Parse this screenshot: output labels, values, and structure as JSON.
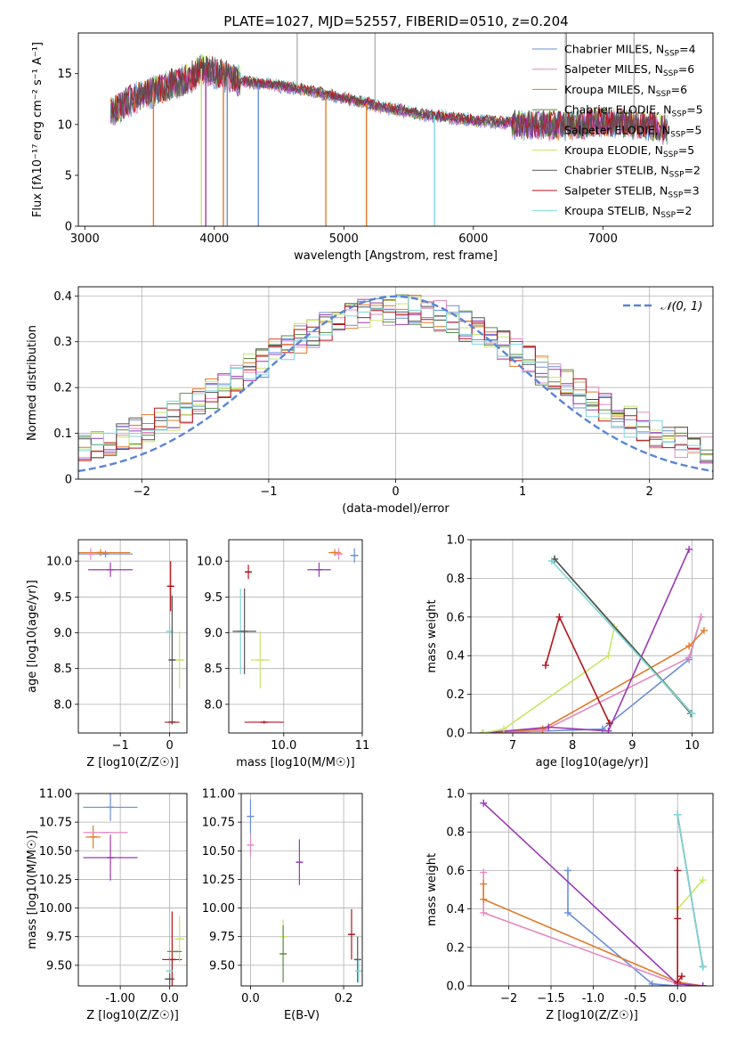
{
  "figure_title": "PLATE=1027, MJD=52557, FIBERID=0510, z=0.204",
  "models": [
    {
      "name": "Chabrier MILES",
      "nssp": "4",
      "color": "#6a8fd9"
    },
    {
      "name": "Salpeter MILES",
      "nssp": "6",
      "color": "#e58ac0"
    },
    {
      "name": "Kroupa MILES",
      "nssp": "6",
      "color": "#e07b2a"
    },
    {
      "name": "Chabrier ELODIE",
      "nssp": "5",
      "color": "#5a8c47"
    },
    {
      "name": "Salpeter ELODIE",
      "nssp": "5",
      "color": "#9a39b6"
    },
    {
      "name": "Kroupa ELODIE",
      "nssp": "5",
      "color": "#c8e66a"
    },
    {
      "name": "Chabrier STELIB",
      "nssp": "2",
      "color": "#555555"
    },
    {
      "name": "Salpeter STELIB",
      "nssp": "3",
      "color": "#b5141c"
    },
    {
      "name": "Kroupa STELIB",
      "nssp": "2",
      "color": "#7fd6dc"
    }
  ],
  "chart_data": [
    {
      "id": "spectrum",
      "type": "line",
      "xlabel": "wavelength [Angstrom, rest frame]",
      "ylabel": "Flux [fλ10⁻¹⁷ erg cm⁻² s⁻¹ A⁻¹]",
      "xlim": [
        2950,
        7850
      ],
      "ylim": [
        0,
        19
      ],
      "xticks": [
        3000,
        4000,
        5000,
        6000,
        7000
      ],
      "yticks": [
        0,
        5,
        10,
        15
      ],
      "continuum": {
        "x": [
          3200,
          3400,
          3600,
          3800,
          3900,
          4000,
          4200,
          4400,
          4700,
          5000,
          5300,
          5600,
          6000,
          6200,
          6500,
          6800,
          7000,
          7300,
          7500
        ],
        "y": [
          11.2,
          12.7,
          13.6,
          14.5,
          15.5,
          15.2,
          14.2,
          14.0,
          13.4,
          12.6,
          11.7,
          11.0,
          10.4,
          10.2,
          9.9,
          9.9,
          10.3,
          10.0,
          9.5
        ]
      },
      "dips": [
        3530,
        3900,
        3934,
        4070,
        4100,
        4340,
        4861,
        5175,
        5700
      ],
      "spikes": [
        4640,
        5240,
        6710,
        6720,
        7240
      ]
    },
    {
      "id": "residuals",
      "type": "histogram",
      "xlabel": "(data-model)/error",
      "ylabel": "Normed distribution",
      "xlim": [
        -2.5,
        2.5
      ],
      "ylim": [
        0,
        0.42
      ],
      "xticks": [
        -2,
        -1,
        0,
        1,
        2
      ],
      "yticks": [
        0,
        0.1,
        0.2,
        0.3,
        0.4
      ],
      "bin_width": 0.1,
      "reference_label": "N(0,1)"
    },
    {
      "id": "age_vs_Z",
      "type": "scatter",
      "xlabel": "Z [log10(Z/Z☉)]",
      "ylabel": "age  [log10(age/yr)]",
      "xlim": [
        -1.85,
        0.35
      ],
      "ylim": [
        7.6,
        10.3
      ],
      "xticks": [
        -1,
        0
      ],
      "yticks": [
        8.0,
        8.5,
        9.0,
        9.5,
        10.0
      ],
      "points": [
        {
          "model": 0,
          "x": -1.3,
          "y": 10.1,
          "xerr": 0.55,
          "yerr": 0.05
        },
        {
          "model": 2,
          "x": -1.4,
          "y": 10.12,
          "xerr": 0.6,
          "yerr": 0.05
        },
        {
          "model": 1,
          "x": -1.6,
          "y": 10.1,
          "xerr": 0.05,
          "yerr": 0.08
        },
        {
          "model": 4,
          "x": -1.2,
          "y": 9.88,
          "xerr": 0.45,
          "yerr": 0.1
        },
        {
          "model": 7,
          "x": 0.02,
          "y": 9.65,
          "xerr": 0.02,
          "yerr": 0.35
        },
        {
          "model": 7,
          "x": 0.05,
          "y": 7.75,
          "xerr": 0.15,
          "yerr": 0.03
        },
        {
          "model": 5,
          "x": 0.2,
          "y": 8.62,
          "xerr": 0.1,
          "yerr": 0.4
        },
        {
          "model": 8,
          "x": 0.0,
          "y": 9.02,
          "xerr": 0.05,
          "yerr": 0.1
        },
        {
          "model": 6,
          "x": 0.05,
          "y": 8.62,
          "xerr": 0.03,
          "yerr": 0.9
        }
      ]
    },
    {
      "id": "age_vs_mass",
      "type": "scatter",
      "xlabel": "mass [log10(M/M☉)]",
      "ylabel": "",
      "xlim": [
        9.3,
        11.0
      ],
      "ylim": [
        7.6,
        10.3
      ],
      "xticks": [
        10,
        11
      ],
      "yticks": [
        8.0,
        8.5,
        9.0,
        9.5,
        10.0
      ],
      "points": [
        {
          "model": 0,
          "x": 10.9,
          "y": 10.08,
          "xerr": 0.05,
          "yerr": 0.1
        },
        {
          "model": 2,
          "x": 10.65,
          "y": 10.12,
          "xerr": 0.08,
          "yerr": 0.05
        },
        {
          "model": 1,
          "x": 10.7,
          "y": 10.1,
          "xerr": 0.05,
          "yerr": 0.08
        },
        {
          "model": 4,
          "x": 10.45,
          "y": 9.88,
          "xerr": 0.15,
          "yerr": 0.1
        },
        {
          "model": 7,
          "x": 9.55,
          "y": 9.85,
          "xerr": 0.02,
          "yerr": 0.1
        },
        {
          "model": 7,
          "x": 9.75,
          "y": 7.75,
          "xerr": 0.25,
          "yerr": 0.02
        },
        {
          "model": 5,
          "x": 9.7,
          "y": 8.62,
          "xerr": 0.12,
          "yerr": 0.4
        },
        {
          "model": 8,
          "x": 9.45,
          "y": 9.02,
          "xerr": 0.05,
          "yerr": 0.6
        },
        {
          "model": 6,
          "x": 9.5,
          "y": 9.02,
          "xerr": 0.15,
          "yerr": 0.6
        }
      ]
    },
    {
      "id": "weight_vs_age",
      "type": "line",
      "xlabel": "age  [log10(age/yr)]",
      "ylabel": "mass weight",
      "xlim": [
        6.3,
        10.35
      ],
      "ylim": [
        0,
        1
      ],
      "xticks": [
        7,
        8,
        9,
        10
      ],
      "yticks": [
        0.0,
        0.2,
        0.4,
        0.6,
        0.8,
        1.0
      ],
      "series": [
        {
          "model": 0,
          "x": [
            6.5,
            8.5,
            9.95,
            10.15
          ],
          "y": [
            0.0,
            0.02,
            0.38,
            0.6
          ]
        },
        {
          "model": 1,
          "x": [
            6.5,
            7.5,
            9.95,
            10.15
          ],
          "y": [
            0.0,
            0.01,
            0.39,
            0.6
          ]
        },
        {
          "model": 2,
          "x": [
            6.5,
            7.5,
            9.95,
            10.2
          ],
          "y": [
            0.0,
            0.02,
            0.45,
            0.53
          ]
        },
        {
          "model": 3,
          "x": [
            7.7,
            10.0
          ],
          "y": [
            0.9,
            0.1
          ]
        },
        {
          "model": 4,
          "x": [
            6.5,
            7.6,
            8.6,
            9.95
          ],
          "y": [
            0.0,
            0.03,
            0.01,
            0.95
          ]
        },
        {
          "model": 5,
          "x": [
            6.5,
            6.85,
            8.6,
            8.7
          ],
          "y": [
            0.0,
            0.02,
            0.4,
            0.55
          ]
        },
        {
          "model": 6,
          "x": [
            7.7,
            9.98
          ],
          "y": [
            0.9,
            0.1
          ]
        },
        {
          "model": 7,
          "x": [
            7.55,
            7.78,
            8.62
          ],
          "y": [
            0.35,
            0.6,
            0.05
          ]
        },
        {
          "model": 8,
          "x": [
            7.65,
            10.0
          ],
          "y": [
            0.89,
            0.1
          ]
        }
      ]
    },
    {
      "id": "mass_vs_Z",
      "type": "scatter",
      "xlabel": "Z [log10(Z/Z☉)]",
      "ylabel": "mass [log10(M/M☉)]",
      "xlim": [
        -1.85,
        0.35
      ],
      "ylim": [
        9.32,
        11.0
      ],
      "xticks": [
        -1,
        0
      ],
      "yticks": [
        9.5,
        9.75,
        10.0,
        10.25,
        10.5,
        10.75,
        11.0
      ],
      "points": [
        {
          "model": 0,
          "x": -1.2,
          "y": 10.88,
          "xerr": 0.55,
          "yerr": 0.12
        },
        {
          "model": 2,
          "x": -1.55,
          "y": 10.62,
          "xerr": 0.15,
          "yerr": 0.1
        },
        {
          "model": 1,
          "x": -1.3,
          "y": 10.66,
          "xerr": 0.45,
          "yerr": 0.0
        },
        {
          "model": 4,
          "x": -1.2,
          "y": 10.44,
          "xerr": 0.55,
          "yerr": 0.2
        },
        {
          "model": 7,
          "x": 0.05,
          "y": 9.55,
          "xerr": 0.2,
          "yerr": 0.42
        },
        {
          "model": 5,
          "x": 0.2,
          "y": 9.73,
          "xerr": 0.1,
          "yerr": 0.2
        },
        {
          "model": 3,
          "x": 0.1,
          "y": 9.62,
          "xerr": 0.15,
          "yerr": 0.0
        },
        {
          "model": 8,
          "x": 0.0,
          "y": 9.45,
          "xerr": 0.05,
          "yerr": 0.1
        },
        {
          "model": 6,
          "x": 0.0,
          "y": 9.38,
          "xerr": 0.1,
          "yerr": 0.05
        }
      ]
    },
    {
      "id": "mass_vs_EBV",
      "type": "scatter",
      "xlabel": "E(B-V)",
      "ylabel": "",
      "xlim": [
        -0.02,
        0.24
      ],
      "ylim": [
        9.32,
        11.0
      ],
      "xticks": [
        0.0,
        0.2
      ],
      "yticks": [
        9.5,
        9.75,
        10.0,
        10.25,
        10.5,
        10.75,
        11.0
      ],
      "points": [
        {
          "model": 0,
          "x": 0.0,
          "y": 10.8,
          "xerr": 0.0,
          "yerr": 0.15
        },
        {
          "model": 1,
          "x": 0.0,
          "y": 10.55,
          "xerr": 0.0,
          "yerr": 0.1
        },
        {
          "model": 4,
          "x": 0.105,
          "y": 10.4,
          "xerr": 0.0,
          "yerr": 0.2
        },
        {
          "model": 5,
          "x": 0.07,
          "y": 9.75,
          "xerr": 0.0,
          "yerr": 0.15
        },
        {
          "model": 3,
          "x": 0.07,
          "y": 9.6,
          "xerr": 0.0,
          "yerr": 0.25
        },
        {
          "model": 7,
          "x": 0.217,
          "y": 9.77,
          "xerr": 0.0,
          "yerr": 0.22
        },
        {
          "model": 6,
          "x": 0.23,
          "y": 9.55,
          "xerr": 0.0,
          "yerr": 0.2
        },
        {
          "model": 8,
          "x": 0.232,
          "y": 9.45,
          "xerr": 0.0,
          "yerr": 0.1
        }
      ]
    },
    {
      "id": "weight_vs_Z",
      "type": "line",
      "xlabel": "Z [log10(Z/Z☉)]",
      "ylabel": "mass weight",
      "xlim": [
        -2.45,
        0.42
      ],
      "ylim": [
        0,
        1
      ],
      "xticks": [
        -2.0,
        -1.5,
        -1.0,
        -0.5,
        0.0
      ],
      "yticks": [
        0.0,
        0.2,
        0.4,
        0.6,
        0.8,
        1.0
      ],
      "series": [
        {
          "model": 0,
          "x": [
            -1.3,
            -1.3,
            -0.3,
            0.0
          ],
          "y": [
            0.6,
            0.38,
            0.01,
            0.0
          ]
        },
        {
          "model": 1,
          "x": [
            -2.3,
            -2.3,
            0.0,
            0.3
          ],
          "y": [
            0.59,
            0.38,
            0.01,
            0.0
          ]
        },
        {
          "model": 2,
          "x": [
            -2.3,
            -2.3,
            0.0,
            0.3
          ],
          "y": [
            0.53,
            0.45,
            0.02,
            0.0
          ]
        },
        {
          "model": 3,
          "x": [
            0.0,
            0.3
          ],
          "y": [
            0.89,
            0.1
          ]
        },
        {
          "model": 4,
          "x": [
            -2.3,
            0.0,
            0.3
          ],
          "y": [
            0.95,
            0.01,
            0.0
          ]
        },
        {
          "model": 5,
          "x": [
            0.0,
            0.0,
            0.3
          ],
          "y": [
            0.02,
            0.4,
            0.55
          ]
        },
        {
          "model": 6,
          "x": [
            0.0,
            0.3
          ],
          "y": [
            0.89,
            0.1
          ]
        },
        {
          "model": 7,
          "x": [
            0.0,
            0.0,
            0.0,
            0.05
          ],
          "y": [
            0.35,
            0.6,
            0.02,
            0.05
          ]
        },
        {
          "model": 8,
          "x": [
            0.0,
            0.3
          ],
          "y": [
            0.89,
            0.1
          ]
        }
      ]
    }
  ]
}
